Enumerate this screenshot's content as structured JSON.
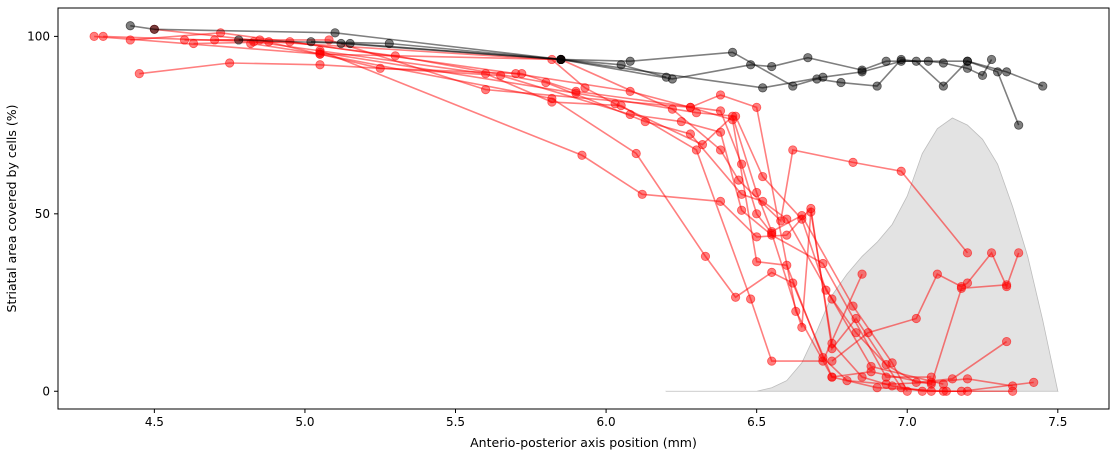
{
  "chart_data": {
    "type": "line",
    "title": "",
    "xlabel": "Anterio-posterior axis position (mm)",
    "ylabel": "Striatal area covered by cells (%)",
    "xlim": [
      4.18,
      7.67
    ],
    "ylim": [
      -5,
      108
    ],
    "xticks": [
      {
        "value": 4.5,
        "label": "4.5"
      },
      {
        "value": 5.0,
        "label": "5.0"
      },
      {
        "value": 5.5,
        "label": "5.5"
      },
      {
        "value": 6.0,
        "label": "6.0"
      },
      {
        "value": 6.5,
        "label": "6.5"
      },
      {
        "value": 7.0,
        "label": "7.0"
      },
      {
        "value": 7.5,
        "label": "7.5"
      }
    ],
    "yticks": [
      {
        "value": 0,
        "label": "0"
      },
      {
        "value": 50,
        "label": "50"
      },
      {
        "value": 100,
        "label": "100"
      }
    ],
    "grid": false,
    "colors": {
      "red": "#ff0000",
      "black": "#000000",
      "density": "#d9d9d9"
    },
    "density": {
      "x": [
        6.2,
        6.5,
        6.55,
        6.6,
        6.65,
        6.7,
        6.75,
        6.8,
        6.85,
        6.9,
        6.95,
        7.0,
        7.05,
        7.1,
        7.15,
        7.2,
        7.25,
        7.3,
        7.35,
        7.4,
        7.45,
        7.5
      ],
      "y": [
        0,
        0,
        1,
        3,
        8,
        17,
        27,
        33,
        38,
        42,
        47,
        55,
        67,
        74,
        77,
        75,
        71,
        64,
        52,
        38,
        20,
        0
      ]
    },
    "series": [
      {
        "color": "black",
        "x": [
          4.42,
          4.5,
          5.1,
          5.85,
          6.05,
          6.2
        ],
        "y": [
          103,
          102,
          101,
          93.5,
          92,
          88.5
        ]
      },
      {
        "color": "black",
        "x": [
          4.78,
          5.15,
          5.85,
          6.08,
          6.42,
          6.62,
          6.7,
          6.78,
          6.9,
          6.98,
          7.03,
          7.12,
          7.2,
          7.3,
          7.37
        ],
        "y": [
          99,
          98,
          93.5,
          93,
          95.5,
          86,
          88,
          87,
          86,
          93.5,
          93,
          86,
          93,
          90,
          75
        ]
      },
      {
        "color": "black",
        "x": [
          5.02,
          5.28,
          5.85,
          6.22,
          6.48,
          6.55,
          6.67,
          6.85,
          6.93,
          7.07,
          7.12,
          7.2,
          7.25,
          7.28
        ],
        "y": [
          98.5,
          98,
          93.5,
          88,
          92,
          91.5,
          94,
          90.5,
          93,
          93,
          92.5,
          91,
          89,
          93.5
        ]
      },
      {
        "color": "black",
        "x": [
          5.12,
          5.85,
          6.52,
          6.72,
          6.85,
          6.98,
          7.2,
          7.33,
          7.45
        ],
        "y": [
          98,
          93.5,
          85.5,
          88.5,
          90,
          93,
          93,
          90,
          86
        ]
      },
      {
        "color": "red",
        "x": [
          4.3,
          5.05,
          5.85,
          6.22,
          6.38,
          6.44,
          6.58,
          6.62,
          6.82,
          6.98,
          7.2
        ],
        "y": [
          100,
          95,
          93.5,
          79.5,
          68,
          59.5,
          48,
          68,
          64.5,
          62,
          39
        ]
      },
      {
        "color": "red",
        "x": [
          4.33,
          4.83,
          5.6,
          5.82,
          6.05,
          6.3,
          6.48,
          6.55,
          6.72,
          6.85
        ],
        "y": [
          100,
          98.5,
          89.5,
          81.5,
          80.5,
          68,
          26,
          8.5,
          8.5,
          33
        ]
      },
      {
        "color": "red",
        "x": [
          4.42,
          4.72,
          5.3,
          5.8,
          6.13,
          6.28,
          6.45,
          6.52,
          6.6,
          6.75,
          6.88,
          7.12
        ],
        "y": [
          99,
          101,
          94.5,
          87,
          76,
          72.5,
          55.5,
          53.5,
          48.5,
          26,
          7,
          2
        ]
      },
      {
        "color": "red",
        "x": [
          4.45,
          4.75,
          5.05,
          5.65,
          6.08,
          6.25,
          6.38,
          6.45,
          6.55,
          6.72,
          6.93,
          7.08
        ],
        "y": [
          89.5,
          92.5,
          92,
          89,
          78,
          76,
          73,
          51,
          44,
          36,
          4,
          4
        ]
      },
      {
        "color": "red",
        "x": [
          4.5,
          4.88,
          5.82,
          5.93,
          6.03,
          6.32,
          6.42,
          6.5,
          6.55,
          6.65,
          6.82,
          6.95,
          7.0
        ],
        "y": [
          102,
          98.5,
          93.5,
          85.5,
          81,
          69.5,
          77.5,
          56,
          45,
          49.5,
          24,
          8,
          0
        ]
      },
      {
        "color": "red",
        "x": [
          4.6,
          4.85,
          5.25,
          5.72,
          5.9,
          6.38,
          6.45,
          6.5,
          6.55,
          6.65,
          6.68,
          6.75,
          6.85,
          6.95,
          7.05,
          7.2
        ],
        "y": [
          99,
          99,
          91,
          89.5,
          84.5,
          79,
          64,
          50,
          44.5,
          18,
          50.5,
          13.5,
          4,
          1.5,
          0,
          0
        ]
      },
      {
        "color": "red",
        "x": [
          4.63,
          4.95,
          5.7,
          6.08,
          6.28,
          6.42,
          6.5,
          6.6,
          6.72,
          6.8,
          6.93,
          7.08,
          7.2,
          7.35
        ],
        "y": [
          98,
          98.5,
          89.5,
          84.5,
          80,
          76.5,
          36.5,
          35.5,
          9.5,
          3,
          2,
          2.5,
          3.5,
          1.5
        ]
      },
      {
        "color": "red",
        "x": [
          4.7,
          5.08,
          5.6,
          6.28,
          6.38,
          6.5,
          6.63,
          6.75,
          6.88,
          7.08,
          7.18,
          7.33
        ],
        "y": [
          99,
          99,
          85,
          80,
          83.5,
          80,
          22.5,
          4,
          5.5,
          2,
          29,
          30
        ]
      },
      {
        "color": "red",
        "x": [
          4.82,
          5.05,
          5.82,
          6.1,
          6.33,
          6.43,
          6.55,
          6.62,
          6.75,
          6.9,
          7.13,
          7.35
        ],
        "y": [
          98,
          95,
          82.5,
          67,
          38,
          26.5,
          33.5,
          30.5,
          4,
          1,
          0,
          0
        ]
      },
      {
        "color": "red",
        "x": [
          5.05,
          5.92,
          6.12,
          6.38,
          6.5,
          6.6,
          6.68,
          6.75,
          6.83,
          6.98,
          7.08,
          7.12,
          7.18,
          7.42
        ],
        "y": [
          96,
          66.5,
          55.5,
          53.5,
          43.5,
          44,
          51.5,
          12,
          20.5,
          1,
          0,
          0,
          0,
          2.5
        ]
      },
      {
        "color": "red",
        "x": [
          5.05,
          5.9,
          6.3,
          6.43,
          6.52,
          6.65,
          6.73,
          6.83,
          6.93,
          7.03,
          7.15,
          7.33
        ],
        "y": [
          95.5,
          84,
          78.5,
          77.5,
          60.5,
          48.5,
          28.5,
          16.5,
          7.5,
          2.5,
          3.5,
          14
        ]
      },
      {
        "color": "red",
        "x": [
          6.75,
          6.87,
          7.03,
          7.1,
          7.18,
          7.2,
          7.28,
          7.33,
          7.37
        ],
        "y": [
          8.5,
          16.5,
          20.5,
          33,
          29.5,
          30.5,
          39,
          29.5,
          39
        ]
      }
    ]
  }
}
